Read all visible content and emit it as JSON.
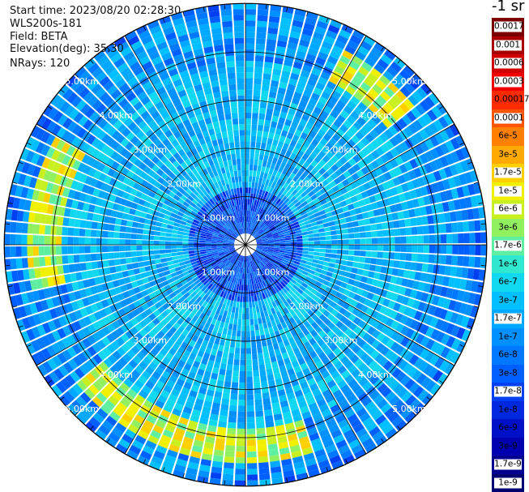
{
  "info": {
    "start_time": "Start time: 2023/08/20 02:28:30",
    "site": "WLS200s-181",
    "field": "Field: BETA",
    "elevation": "Elevation(deg): 35.30",
    "nrays": "NRays: 120"
  },
  "unit_label": "-1 sr",
  "colorbar": [
    {
      "label": "0.0017",
      "color": "#7a0000",
      "boxed": true
    },
    {
      "label": "0.001",
      "color": "#a80000",
      "boxed": true
    },
    {
      "label": "0.0006",
      "color": "#d20000",
      "boxed": true
    },
    {
      "label": "0.0003",
      "color": "#f00000",
      "boxed": true
    },
    {
      "label": "0.00017",
      "color": "#ff2a00",
      "boxed": false
    },
    {
      "label": "0.0001",
      "color": "#ff5500",
      "boxed": true
    },
    {
      "label": "6e-5",
      "color": "#ff8000",
      "boxed": false
    },
    {
      "label": "3e-5",
      "color": "#ffaa00",
      "boxed": false
    },
    {
      "label": "1.7e-5",
      "color": "#ffd000",
      "boxed": true
    },
    {
      "label": "1e-5",
      "color": "#f0f000",
      "boxed": true
    },
    {
      "label": "6e-6",
      "color": "#c8f020",
      "boxed": true
    },
    {
      "label": "3e-6",
      "color": "#90f060",
      "boxed": false
    },
    {
      "label": "1.7e-6",
      "color": "#5ef0a0",
      "boxed": true
    },
    {
      "label": "1e-6",
      "color": "#30e8d0",
      "boxed": false
    },
    {
      "label": "6e-7",
      "color": "#10d8f0",
      "boxed": false
    },
    {
      "label": "3e-7",
      "color": "#00c0ff",
      "boxed": false
    },
    {
      "label": "1.7e-7",
      "color": "#00a8ff",
      "boxed": true
    },
    {
      "label": "1e-7",
      "color": "#0090ff",
      "boxed": false
    },
    {
      "label": "6e-8",
      "color": "#0078ff",
      "boxed": false
    },
    {
      "label": "3e-8",
      "color": "#0060ff",
      "boxed": false
    },
    {
      "label": "1.7e-8",
      "color": "#0040f0",
      "boxed": true
    },
    {
      "label": "1e-8",
      "color": "#0028e0",
      "boxed": false
    },
    {
      "label": "6e-9",
      "color": "#0010c8",
      "boxed": false
    },
    {
      "label": "3e-9",
      "color": "#0000b0",
      "boxed": false
    },
    {
      "label": "1.7e-9",
      "color": "#000090",
      "boxed": true
    },
    {
      "label": "1e-9",
      "color": "#000070",
      "boxed": true
    }
  ],
  "range_labels": [
    {
      "text": "1.00km",
      "range_km": 1,
      "dirs": [
        "nw",
        "ne",
        "sw",
        "se"
      ]
    },
    {
      "text": "2.00km",
      "range_km": 2,
      "dirs": [
        "nw",
        "ne",
        "sw",
        "se"
      ]
    },
    {
      "text": "3.00km",
      "range_km": 3,
      "dirs": [
        "nw",
        "ne",
        "sw",
        "se"
      ]
    },
    {
      "text": "4.00km",
      "range_km": 4,
      "dirs": [
        "nw",
        "ne",
        "sw",
        "se"
      ]
    },
    {
      "text": "5.00km",
      "range_km": 5,
      "dirs": [
        "nw",
        "ne",
        "sw",
        "se"
      ]
    }
  ]
}
